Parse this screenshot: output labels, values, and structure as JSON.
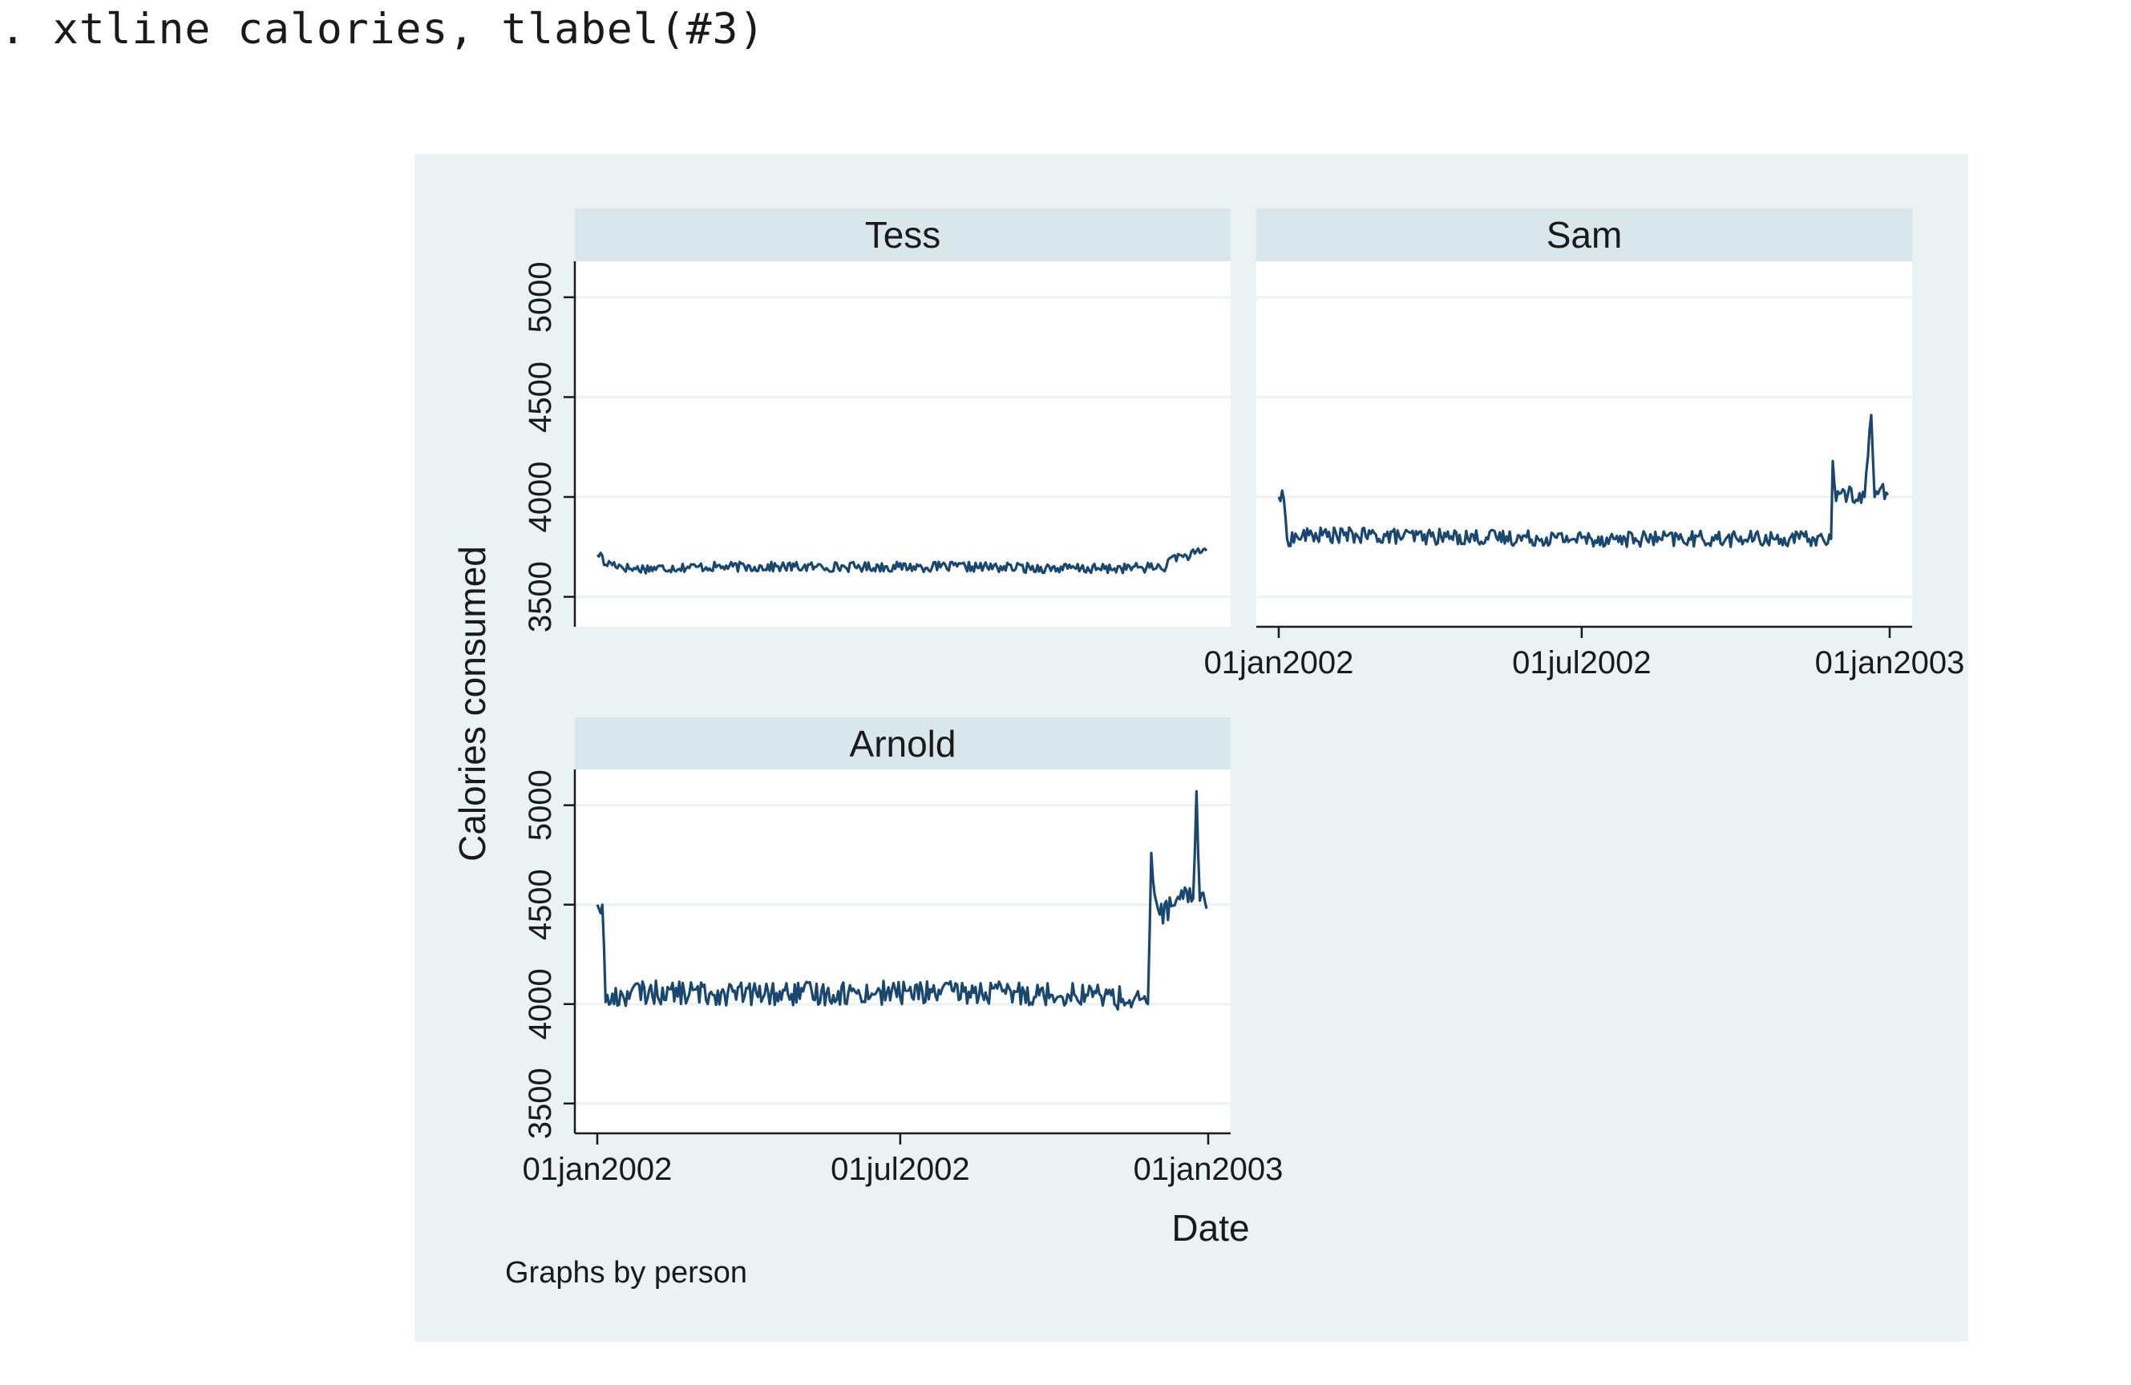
{
  "command": ". xtline calories, tlabel(#3)",
  "chart_data": {
    "type": "line",
    "layout": "2x2 panels",
    "ylabel": "Calories consumed",
    "xlabel": "Date",
    "note": "Graphs by person",
    "ylim": [
      3350,
      5180
    ],
    "yticks": [
      3500,
      4000,
      4500,
      5000
    ],
    "xticks": [
      "01jan2002",
      "01jul2002",
      "01jan2003"
    ],
    "x_range": [
      "2002-01-01",
      "2003-01-01"
    ],
    "colors": {
      "line": "#1a476f",
      "background": "#eaf2f3",
      "strip": "#d9e6eb",
      "grid": "#eaf2f3"
    },
    "panels": [
      {
        "name": "Tess",
        "series": {
          "name": "calories",
          "start": "2002-01-01",
          "step_days": 1,
          "keypoints": [
            [
              0,
              3710
            ],
            [
              2,
              3720
            ],
            [
              4,
              3660
            ],
            [
              8,
              3670
            ],
            [
              20,
              3640
            ],
            [
              60,
              3650
            ],
            [
              130,
              3650
            ],
            [
              180,
              3650
            ],
            [
              220,
              3650
            ],
            [
              300,
              3640
            ],
            [
              340,
              3650
            ],
            [
              344,
              3705
            ],
            [
              350,
              3700
            ],
            [
              360,
              3720
            ],
            [
              364,
              3730
            ]
          ],
          "noise_amplitude": 25
        }
      },
      {
        "name": "Sam",
        "series": {
          "name": "calories",
          "start": "2002-01-01",
          "step_days": 1,
          "keypoints": [
            [
              0,
              4000
            ],
            [
              3,
              3990
            ],
            [
              5,
              3790
            ],
            [
              20,
              3810
            ],
            [
              100,
              3800
            ],
            [
              200,
              3790
            ],
            [
              300,
              3790
            ],
            [
              330,
              3790
            ],
            [
              331,
              4180
            ],
            [
              333,
              3980
            ],
            [
              336,
              4020
            ],
            [
              350,
              4000
            ],
            [
              354,
              4410
            ],
            [
              356,
              4000
            ],
            [
              360,
              4050
            ],
            [
              364,
              4010
            ]
          ],
          "noise_amplitude": 40
        }
      },
      {
        "name": "Arnold",
        "series": {
          "name": "calories",
          "start": "2002-01-01",
          "step_days": 1,
          "keypoints": [
            [
              0,
              4500
            ],
            [
              3,
              4500
            ],
            [
              5,
              4010
            ],
            [
              20,
              4060
            ],
            [
              100,
              4050
            ],
            [
              200,
              4060
            ],
            [
              300,
              4050
            ],
            [
              329,
              4000
            ],
            [
              331,
              4760
            ],
            [
              333,
              4550
            ],
            [
              336,
              4450
            ],
            [
              350,
              4530
            ],
            [
              356,
              4530
            ],
            [
              358,
              5070
            ],
            [
              360,
              4520
            ],
            [
              362,
              4560
            ],
            [
              364,
              4480
            ]
          ],
          "noise_amplitude": 60
        }
      }
    ]
  }
}
